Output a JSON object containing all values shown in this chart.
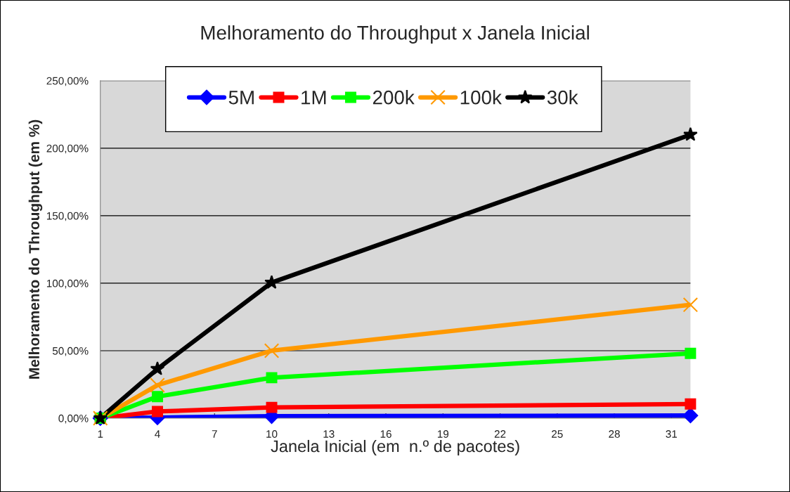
{
  "chart_data": {
    "type": "line",
    "title": "Melhoramento do Throughput x Janela Inicial",
    "xlabel": "Janela Inicial (em  n.º de pacotes)",
    "ylabel": "Melhoramento do Throughput (em %)",
    "x": [
      1,
      4,
      10,
      32
    ],
    "series": [
      {
        "name": "5M",
        "color": "#0000ff",
        "marker": "diamond",
        "values": [
          0,
          0.5,
          1.5,
          2
        ]
      },
      {
        "name": "1M",
        "color": "#ff0000",
        "marker": "square",
        "values": [
          0,
          5,
          8,
          10.5
        ]
      },
      {
        "name": "200k",
        "color": "#00ff00",
        "marker": "square",
        "values": [
          0,
          16,
          30,
          48
        ]
      },
      {
        "name": "100k",
        "color": "#ff9900",
        "marker": "cross",
        "values": [
          0,
          24.5,
          50,
          84
        ]
      },
      {
        "name": "30k",
        "color": "#000000",
        "marker": "star",
        "values": [
          0,
          36.5,
          100.5,
          210
        ]
      }
    ],
    "xlim": [
      1,
      32
    ],
    "xticks": [
      1,
      4,
      7,
      10,
      13,
      16,
      19,
      22,
      25,
      28,
      31
    ],
    "ylim": [
      0,
      250
    ],
    "yticks": [
      {
        "value": 0,
        "label": "0,00%"
      },
      {
        "value": 50,
        "label": "50,00%"
      },
      {
        "value": 100,
        "label": "100,00%"
      },
      {
        "value": 150,
        "label": "150,00%"
      },
      {
        "value": 200,
        "label": "200,00%"
      },
      {
        "value": 250,
        "label": "250,00%"
      }
    ],
    "grid": "y",
    "legend": "top",
    "line_style": "solid"
  }
}
